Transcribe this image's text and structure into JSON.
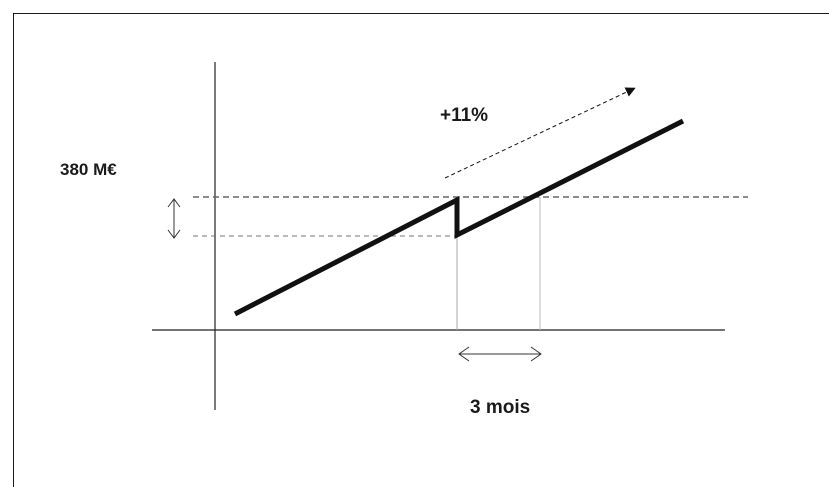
{
  "labels": {
    "amount": "380 M€",
    "growth": "+11%",
    "duration": "3 mois"
  }
}
